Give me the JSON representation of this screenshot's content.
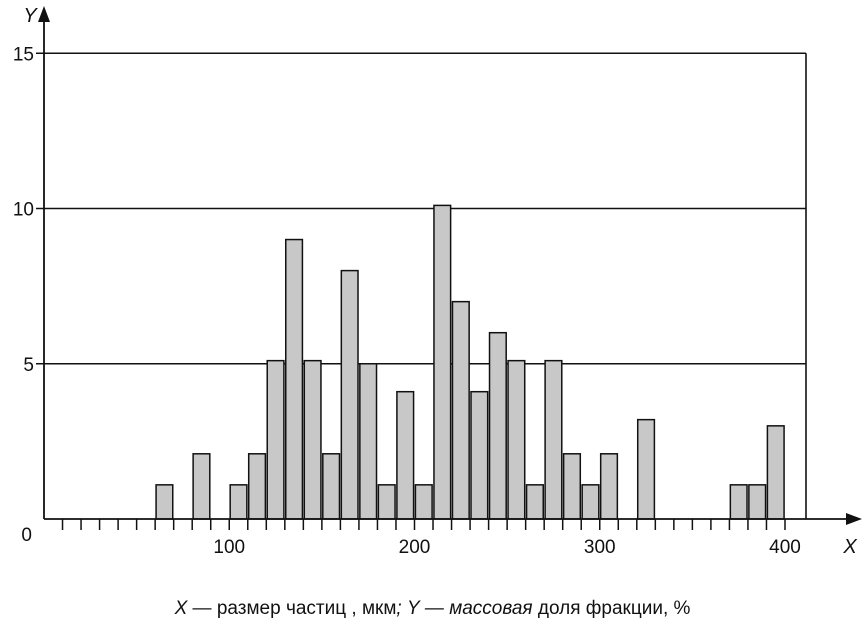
{
  "chart_data": {
    "type": "bar",
    "title": "",
    "x_axis_label": "X",
    "y_axis_label": "Y",
    "x_ticks": [
      100,
      200,
      300,
      400
    ],
    "x_tick_labels": [
      "100",
      "200",
      "300",
      "400"
    ],
    "y_ticks": [
      0,
      5,
      10,
      15
    ],
    "y_tick_labels": [
      "0",
      "5",
      "10",
      "15"
    ],
    "xlim": [
      0,
      410
    ],
    "ylim": [
      0,
      15
    ],
    "grid": "horizontal",
    "bar_width": 9,
    "bar_color": "#c8c8c8",
    "x": [
      65,
      85,
      105,
      115,
      125,
      135,
      145,
      155,
      165,
      175,
      185,
      195,
      205,
      215,
      225,
      235,
      245,
      255,
      265,
      275,
      285,
      295,
      305,
      325,
      375,
      385,
      395
    ],
    "values": [
      1.1,
      2.1,
      1.1,
      2.1,
      5.1,
      9.0,
      5.1,
      2.1,
      8.0,
      5.0,
      1.1,
      4.1,
      1.1,
      10.1,
      7.0,
      4.1,
      6.0,
      5.1,
      1.1,
      5.1,
      2.1,
      1.1,
      2.1,
      3.2,
      1.1,
      1.1,
      3.0
    ]
  },
  "caption": {
    "x_symbol": "X",
    "x_text": " — размер частиц , мкм",
    "sep": "; ",
    "y_symbol": "Y",
    "y_dash": " — ",
    "y_italic": "массовая",
    "y_text": " доля фракции, %"
  }
}
